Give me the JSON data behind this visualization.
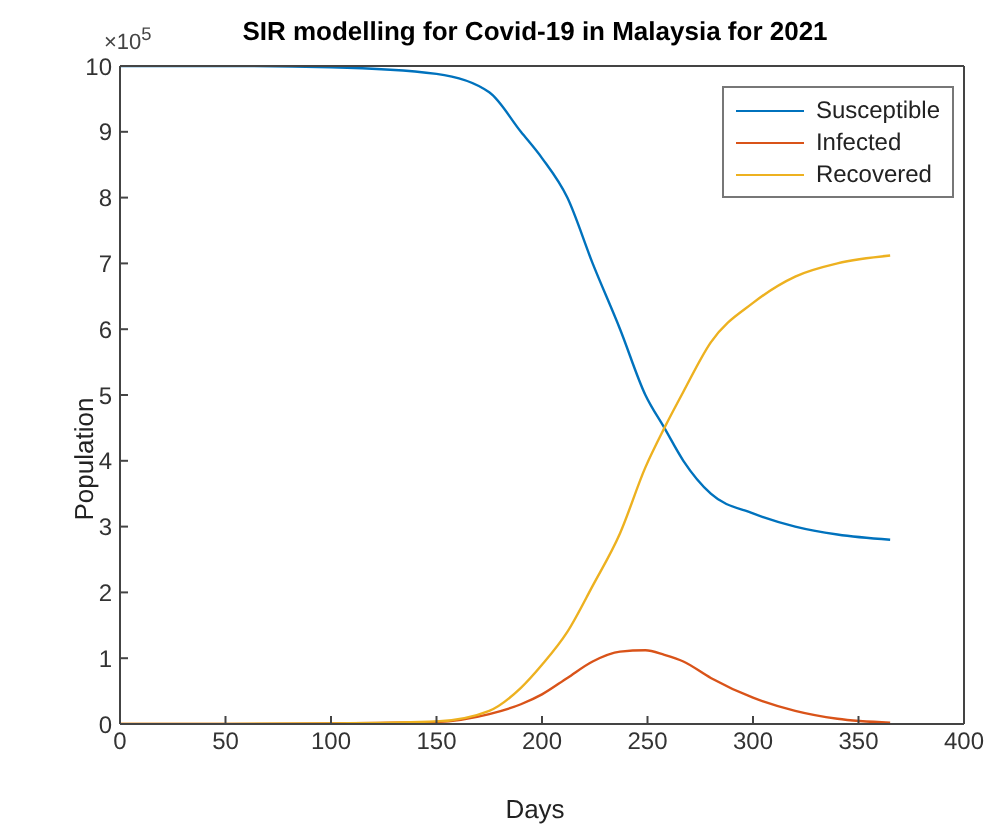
{
  "chart_data": {
    "type": "line",
    "title": "SIR modelling for Covid-19 in Malaysia for 2021",
    "xlabel": "Days",
    "ylabel": "Population",
    "annotations": [
      "×10$^{5}$"
    ],
    "x": [
      0,
      50,
      100,
      150,
      175,
      190,
      200,
      212,
      224,
      237,
      249,
      258,
      267,
      280,
      300,
      320,
      340,
      365
    ],
    "series": [
      {
        "name": "Susceptible",
        "color": "#0072bd",
        "values": [
          10,
          10,
          9.98,
          9.88,
          9.6,
          9.0,
          8.6,
          8.0,
          7.0,
          6.0,
          5.0,
          4.5,
          4.0,
          3.5,
          3.2,
          3.0,
          2.88,
          2.8
        ]
      },
      {
        "name": "Infected",
        "color": "#d95319",
        "values": [
          0,
          0,
          0.01,
          0.03,
          0.15,
          0.3,
          0.45,
          0.7,
          0.95,
          1.1,
          1.12,
          1.05,
          0.95,
          0.7,
          0.4,
          0.2,
          0.08,
          0.02
        ]
      },
      {
        "name": "Recovered",
        "color": "#edb120",
        "values": [
          0,
          0,
          0.01,
          0.04,
          0.2,
          0.55,
          0.9,
          1.4,
          2.1,
          2.9,
          3.9,
          4.5,
          5.05,
          5.8,
          6.4,
          6.8,
          7.0,
          7.12
        ]
      }
    ],
    "xlim": [
      0,
      400
    ],
    "xticks": [
      0,
      50,
      100,
      150,
      200,
      250,
      300,
      350,
      400
    ],
    "ylim": [
      0,
      10
    ],
    "yticks": [
      0,
      1,
      2,
      3,
      4,
      5,
      6,
      7,
      8,
      9,
      10
    ],
    "grid": false,
    "legend": "top right",
    "marker": "none",
    "line_style": "solid"
  }
}
